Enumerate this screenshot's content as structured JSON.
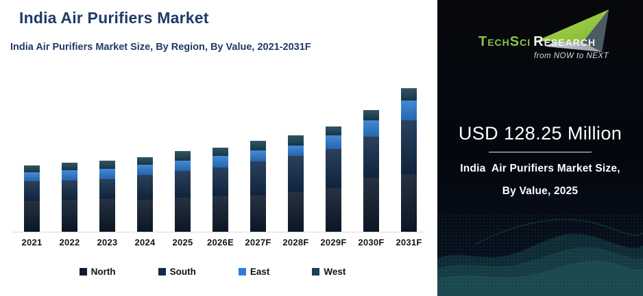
{
  "header": {
    "title": "India Air Purifiers Market",
    "subtitle": "India Air Purifiers Market Size, By Region, By Value, 2021-2031F"
  },
  "chart_data": {
    "type": "bar",
    "stacked": true,
    "title": "India Air Purifiers Market Size, By Region, By Value, 2021-2031F",
    "unit": "USD Million",
    "categories": [
      "2021",
      "2022",
      "2023",
      "2024",
      "2025",
      "2026E",
      "2027F",
      "2028F",
      "2029F",
      "2030F",
      "2031F"
    ],
    "series": [
      {
        "name": "North",
        "color": "#0e1b2c",
        "values": [
          49.3,
          51.5,
          52.6,
          51.5,
          54.85,
          57.0,
          58.1,
          63.6,
          69.1,
          85.5,
          91.0
        ]
      },
      {
        "name": "South",
        "color": "#132b4a",
        "values": [
          30.7,
          29.6,
          30.7,
          38.4,
          41.7,
          44.9,
          53.7,
          57.0,
          62.5,
          65.8,
          86.6
        ]
      },
      {
        "name": "East",
        "color": "#2e7cd2",
        "values": [
          14.3,
          16.4,
          16.4,
          16.4,
          16.4,
          18.6,
          17.5,
          16.4,
          21.9,
          26.3,
          30.7
        ]
      },
      {
        "name": "West",
        "color": "#1a4254",
        "values": [
          11.0,
          12.1,
          13.2,
          12.1,
          15.3,
          13.2,
          15.3,
          16.4,
          14.3,
          16.4,
          19.7
        ]
      }
    ],
    "totals_estimated": [
      105.3,
      109.6,
      112.9,
      118.4,
      128.25,
      133.7,
      144.6,
      153.4,
      167.8,
      194.0,
      228.0
    ],
    "xlabel": "",
    "ylabel": "",
    "ylim": [
      0,
      250
    ],
    "grid": false,
    "legend_position": "bottom",
    "axis_color": "#d9d9d9"
  },
  "side_panel": {
    "logo": {
      "brand_primary": "TechSci",
      "brand_secondary": "Research",
      "tagline": "from NOW to NEXT",
      "arrow_green": "#8dc63f",
      "arrow_silver": "#b9c2c9"
    },
    "headline": "USD 128.25 Million",
    "caption_line1": "India  Air Purifiers Market Size,",
    "caption_line2": "By Value, 2025",
    "background": "#04070f",
    "wave_color": "#1d4b55"
  }
}
